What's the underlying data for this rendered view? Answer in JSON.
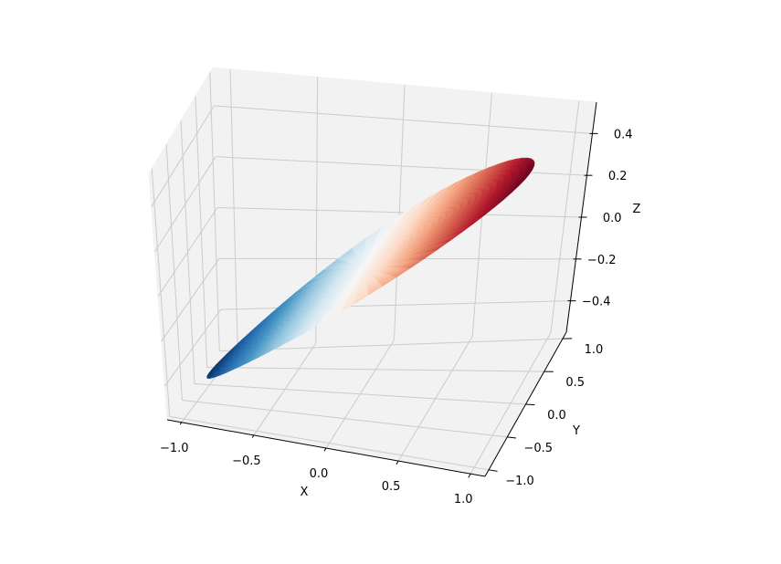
{
  "chart_data": {
    "type": "surface3d",
    "title": "",
    "xlabel": "X",
    "ylabel": "Y",
    "zlabel": "Z",
    "function": "z = 0.5 * r * cos(theta) on the unit disk (x = r·cos θ, y = r·sin θ)",
    "xlim": [
      -1.1,
      1.1
    ],
    "ylim": [
      -1.1,
      1.1
    ],
    "zlim": [
      -0.55,
      0.55
    ],
    "x_ticks": [
      -1.0,
      -0.5,
      0.0,
      0.5,
      1.0
    ],
    "y_ticks": [
      -1.0,
      -0.5,
      0.0,
      0.5,
      1.0
    ],
    "z_ticks": [
      -0.4,
      -0.2,
      0.0,
      0.2,
      0.4
    ],
    "x_tick_labels": [
      "−1.0",
      "−0.5",
      "0.0",
      "0.5",
      "1.0"
    ],
    "y_tick_labels": [
      "−1.0",
      "−0.5",
      "0.0",
      "0.5",
      "1.0"
    ],
    "z_tick_labels": [
      "−0.4",
      "−0.2",
      "0.0",
      "0.2",
      "0.4"
    ],
    "r_samples": 25,
    "theta_samples": 72,
    "colormap": "RdBu_r",
    "colormap_stops": [
      "#053061",
      "#2166ac",
      "#4393c3",
      "#92c5de",
      "#d1e5f0",
      "#f7f7f7",
      "#fddbc7",
      "#f4a582",
      "#d6604d",
      "#b2182b",
      "#67001f"
    ],
    "grid": true,
    "pane_color": "#f2f2f2",
    "grid_color": "#cbcbcb",
    "view": {
      "elevation_deg": 25,
      "azimuth_deg": -70
    }
  }
}
